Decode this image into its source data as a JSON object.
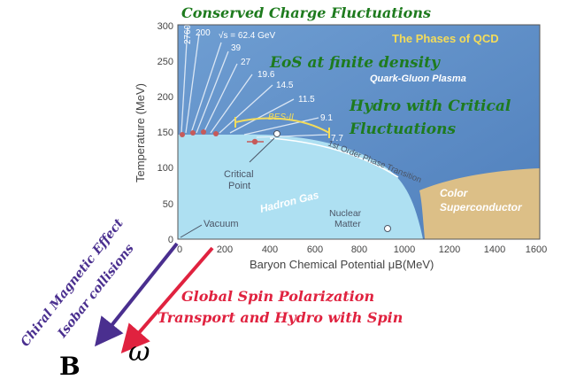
{
  "title": "Conserved Charge Fluctuations",
  "phases_title": "The Phases of QCD",
  "regions": {
    "qgp": "Quark-Gluon Plasma",
    "hadron_gas": "Hadron Gas",
    "color_superconductor_line1": "Color",
    "color_superconductor_line2": "Superconductor"
  },
  "topics": {
    "eos": "EoS at finite density",
    "hydro_line1": "Hydro with Critical",
    "hydro_line2": "Fluctuations",
    "chiral_line1": "Chiral Magnetic Effect",
    "chiral_line2": "Isobar collisions",
    "spin_line1": "Global Spin Polarization",
    "spin_line2": "Transport and Hydro with Spin"
  },
  "annotations": {
    "critical_point_line1": "Critical",
    "critical_point_line2": "Point",
    "vacuum": "Vacuum",
    "nuclear_matter_line1": "Nuclear",
    "nuclear_matter_line2": "Matter",
    "first_order": "1st Order Phase Transition",
    "bes": "BES-II"
  },
  "energies": [
    "2760",
    "200",
    "√s = 62.4 GeV",
    "39",
    "27",
    "19.6",
    "14.5",
    "11.5",
    "9.1",
    "7.7"
  ],
  "axes": {
    "xlabel": "Baryon Chemical Potential μB(MeV)",
    "ylabel": "Temperature (MeV)",
    "xticks": [
      "0",
      "200",
      "400",
      "600",
      "800",
      "1000",
      "1200",
      "1400",
      "1600"
    ],
    "yticks": [
      "0",
      "50",
      "100",
      "150",
      "200",
      "250",
      "300"
    ],
    "xlim": [
      0,
      1600
    ],
    "ylim": [
      0,
      300
    ]
  },
  "vectors": {
    "B": "B",
    "omega": "ω"
  },
  "colors": {
    "plot_blue": "#5d8cc6",
    "hadron_gas": "#aee0f2",
    "superconductor": "#dcbf87",
    "green_text": "#1e7b1e",
    "red_text": "#e0223f",
    "purple_text": "#4a2f8f",
    "yellow_text": "#f4dc5a"
  }
}
